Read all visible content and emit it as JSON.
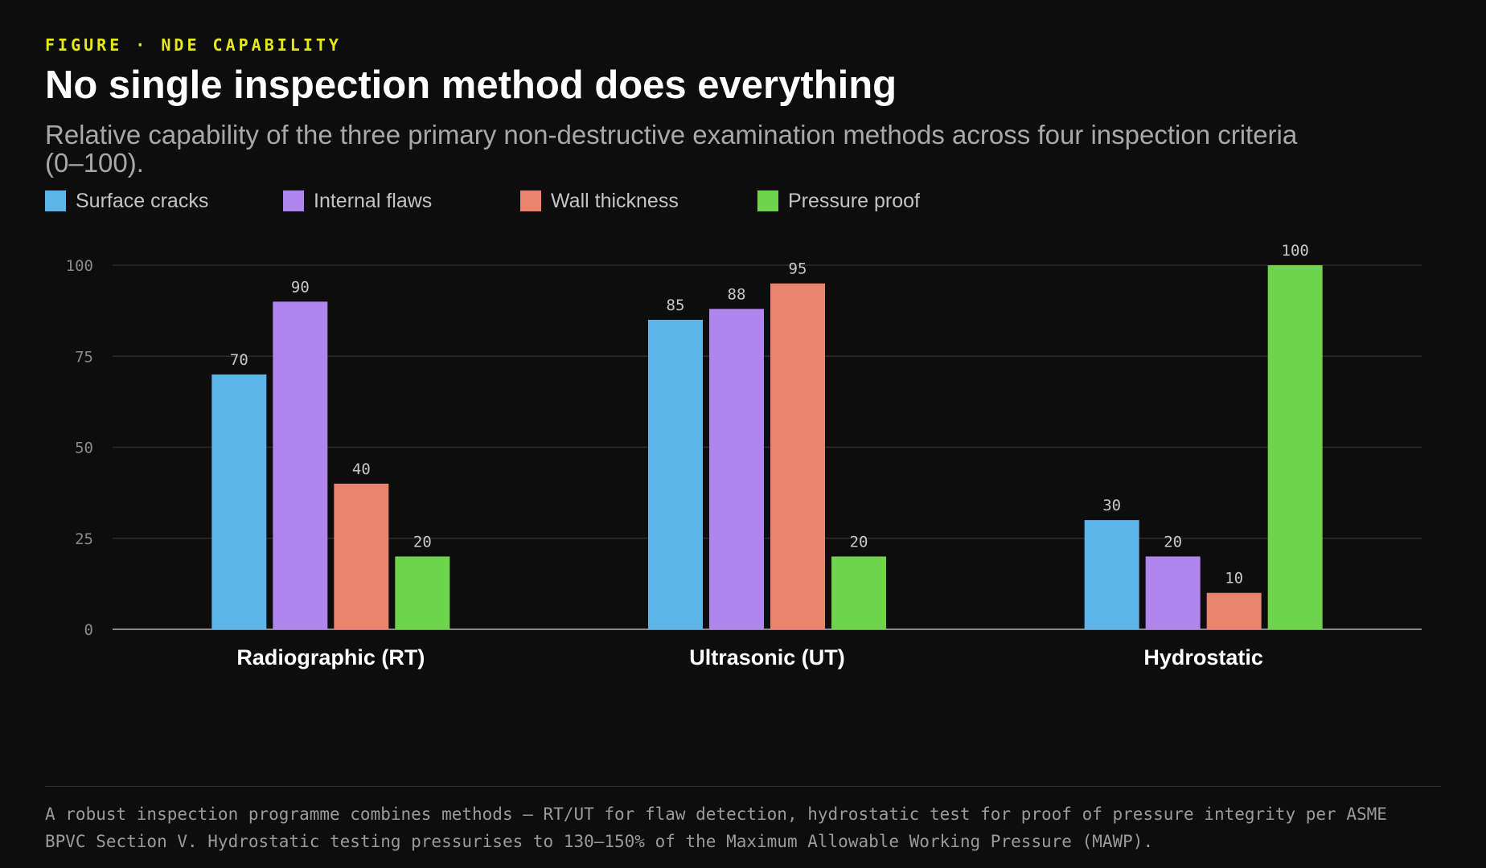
{
  "header": {
    "eyebrow": "FIGURE · NDE CAPABILITY",
    "title": "No single inspection method does everything",
    "subtitle": "Relative capability of the three primary non-destructive examination methods across four inspection criteria (0–100)."
  },
  "chart_data": {
    "type": "bar",
    "categories": [
      "Radiographic (RT)",
      "Ultrasonic (UT)",
      "Hydrostatic"
    ],
    "series": [
      {
        "name": "Surface cracks",
        "color": "#5db4e8",
        "values": [
          70,
          85,
          30
        ]
      },
      {
        "name": "Internal flaws",
        "color": "#b086ee",
        "values": [
          90,
          88,
          20
        ]
      },
      {
        "name": "Wall thickness",
        "color": "#e8836d",
        "values": [
          40,
          95,
          10
        ]
      },
      {
        "name": "Pressure proof",
        "color": "#6dd44b",
        "values": [
          20,
          20,
          100
        ]
      }
    ],
    "yticks": [
      0,
      25,
      50,
      75,
      100
    ],
    "ylim": [
      0,
      100
    ],
    "grid": true,
    "legend_position": "top-left",
    "xlabel": "",
    "ylabel": ""
  },
  "footnote": {
    "line1": "A robust inspection programme combines methods — RT/UT for flaw detection, hydrostatic test for proof of pressure integrity per ASME",
    "line2": "BPVC Section V. Hydrostatic testing pressurises to 130–150% of the Maximum Allowable Working Pressure (MAWP)."
  },
  "colors": {
    "background": "#0d0d0d",
    "accent": "#e5e91a"
  }
}
